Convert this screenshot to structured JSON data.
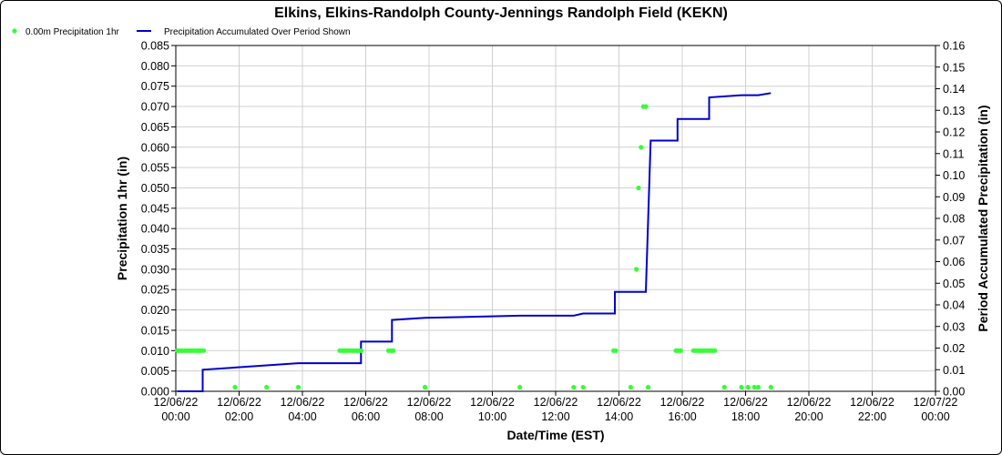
{
  "chart_data": {
    "type": "line",
    "title": "Elkins, Elkins-Randolph County-Jennings Randolph Field (KEKN)",
    "xlabel": "Date/Time (EST)",
    "ylabel_left": "Precipitation 1hr (in)",
    "ylabel_right": "Period Accumulated Precipitation (in)",
    "grid": true,
    "legend_position": "top-left",
    "x_range_hours": [
      0,
      24
    ],
    "ylim_left": [
      0,
      0.085
    ],
    "ylim_right": [
      0,
      0.16
    ],
    "x_ticks": [
      {
        "hour": 0,
        "date": "12/06/22",
        "time": "00:00"
      },
      {
        "hour": 2,
        "date": "12/06/22",
        "time": "02:00"
      },
      {
        "hour": 4,
        "date": "12/06/22",
        "time": "04:00"
      },
      {
        "hour": 6,
        "date": "12/06/22",
        "time": "06:00"
      },
      {
        "hour": 8,
        "date": "12/06/22",
        "time": "08:00"
      },
      {
        "hour": 10,
        "date": "12/06/22",
        "time": "10:00"
      },
      {
        "hour": 12,
        "date": "12/06/22",
        "time": "12:00"
      },
      {
        "hour": 14,
        "date": "12/06/22",
        "time": "14:00"
      },
      {
        "hour": 16,
        "date": "12/06/22",
        "time": "16:00"
      },
      {
        "hour": 18,
        "date": "12/06/22",
        "time": "18:00"
      },
      {
        "hour": 20,
        "date": "12/06/22",
        "time": "20:00"
      },
      {
        "hour": 22,
        "date": "12/06/22",
        "time": "22:00"
      },
      {
        "hour": 24,
        "date": "12/07/22",
        "time": "00:00"
      }
    ],
    "y_ticks_left": [
      "0.000",
      "0.005",
      "0.010",
      "0.015",
      "0.020",
      "0.025",
      "0.030",
      "0.035",
      "0.040",
      "0.045",
      "0.050",
      "0.055",
      "0.060",
      "0.065",
      "0.070",
      "0.075",
      "0.080",
      "0.085"
    ],
    "y_ticks_right": [
      "0.00",
      "0.01",
      "0.02",
      "0.03",
      "0.04",
      "0.05",
      "0.06",
      "0.07",
      "0.08",
      "0.09",
      "0.10",
      "0.11",
      "0.12",
      "0.13",
      "0.14",
      "0.15",
      "0.16"
    ],
    "series": [
      {
        "name": "0.00m Precipitation 1hr",
        "type": "scatter",
        "axis": "left",
        "color": "#33ff33",
        "points": [
          [
            0.05,
            0.01
          ],
          [
            0.12,
            0.01
          ],
          [
            0.2,
            0.01
          ],
          [
            0.28,
            0.01
          ],
          [
            0.35,
            0.01
          ],
          [
            0.43,
            0.01
          ],
          [
            0.5,
            0.01
          ],
          [
            0.58,
            0.01
          ],
          [
            0.65,
            0.01
          ],
          [
            0.73,
            0.01
          ],
          [
            0.8,
            0.01
          ],
          [
            0.88,
            0.01
          ],
          [
            1.87,
            0.001
          ],
          [
            2.87,
            0.001
          ],
          [
            3.87,
            0.001
          ],
          [
            5.18,
            0.01
          ],
          [
            5.26,
            0.01
          ],
          [
            5.33,
            0.01
          ],
          [
            5.41,
            0.01
          ],
          [
            5.48,
            0.01
          ],
          [
            5.56,
            0.01
          ],
          [
            5.63,
            0.01
          ],
          [
            5.71,
            0.01
          ],
          [
            5.78,
            0.01
          ],
          [
            5.86,
            0.01
          ],
          [
            6.72,
            0.01
          ],
          [
            6.8,
            0.01
          ],
          [
            6.87,
            0.01
          ],
          [
            7.87,
            0.001
          ],
          [
            10.87,
            0.001
          ],
          [
            12.57,
            0.001
          ],
          [
            12.87,
            0.001
          ],
          [
            13.83,
            0.01
          ],
          [
            13.9,
            0.01
          ],
          [
            14.37,
            0.001
          ],
          [
            14.55,
            0.03
          ],
          [
            14.62,
            0.05
          ],
          [
            14.7,
            0.06
          ],
          [
            14.77,
            0.07
          ],
          [
            14.85,
            0.07
          ],
          [
            14.92,
            0.001
          ],
          [
            15.8,
            0.01
          ],
          [
            15.87,
            0.01
          ],
          [
            15.95,
            0.01
          ],
          [
            16.35,
            0.01
          ],
          [
            16.43,
            0.01
          ],
          [
            16.5,
            0.01
          ],
          [
            16.58,
            0.01
          ],
          [
            16.65,
            0.01
          ],
          [
            16.73,
            0.01
          ],
          [
            16.8,
            0.01
          ],
          [
            16.88,
            0.01
          ],
          [
            16.95,
            0.01
          ],
          [
            17.03,
            0.01
          ],
          [
            17.33,
            0.001
          ],
          [
            17.87,
            0.001
          ],
          [
            18.08,
            0.001
          ],
          [
            18.28,
            0.001
          ],
          [
            18.4,
            0.001
          ],
          [
            18.8,
            0.001
          ]
        ]
      },
      {
        "name": "Precipitation Accumulated Over Period Shown",
        "type": "line",
        "axis": "right",
        "color": "#0000cc",
        "points": [
          [
            0.05,
            0
          ],
          [
            0.85,
            0
          ],
          [
            0.85,
            0.01
          ],
          [
            3.87,
            0.013
          ],
          [
            5.85,
            0.013
          ],
          [
            5.85,
            0.023
          ],
          [
            6.83,
            0.023
          ],
          [
            6.83,
            0.033
          ],
          [
            7.87,
            0.034
          ],
          [
            10.87,
            0.035
          ],
          [
            12.57,
            0.035
          ],
          [
            12.87,
            0.036
          ],
          [
            13.87,
            0.036
          ],
          [
            13.87,
            0.046
          ],
          [
            14.85,
            0.046
          ],
          [
            15,
            0.116
          ],
          [
            15.85,
            0.116
          ],
          [
            15.85,
            0.126
          ],
          [
            16.85,
            0.126
          ],
          [
            16.85,
            0.136
          ],
          [
            17.87,
            0.137
          ],
          [
            18.4,
            0.137
          ],
          [
            18.8,
            0.138
          ]
        ]
      }
    ]
  }
}
